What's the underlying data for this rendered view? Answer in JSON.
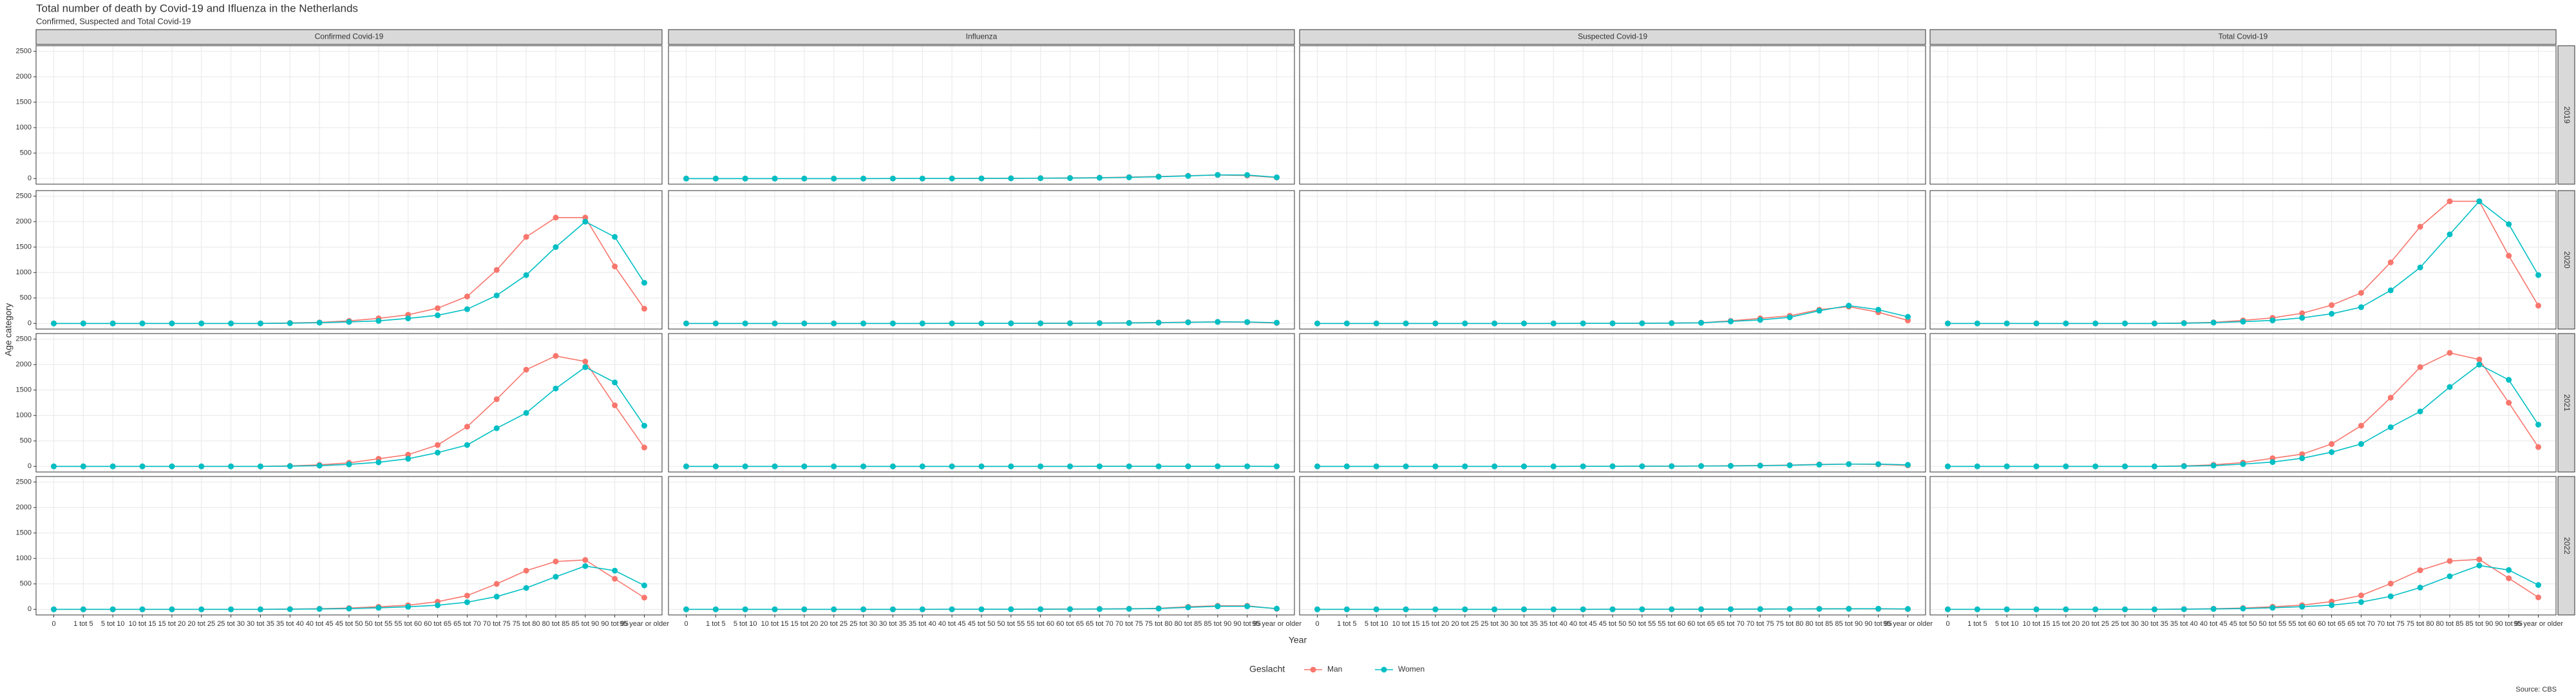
{
  "chart_data": {
    "type": "line",
    "title": "Total number of death by Covid-19 and Ifluenza in the Netherlands",
    "subtitle": "Confirmed, Suspected and Total Covid-19",
    "x_label": "Year",
    "y_label": "Age category",
    "legend_title": "Geslacht",
    "caption": "Source: CBS",
    "columns": [
      "Confirmed Covid-19",
      "Influenza",
      "Suspected Covid-19",
      "Total Covid-19"
    ],
    "rows": [
      "2019",
      "2020",
      "2021",
      "2022"
    ],
    "categories": [
      "0",
      "1 tot 5",
      "5 tot 10",
      "10 tot 15",
      "15 tot 20",
      "20 tot 25",
      "25 tot 30",
      "30 tot 35",
      "35 tot 40",
      "40 tot 45",
      "45 tot 50",
      "50 tot 55",
      "55 tot 60",
      "60 tot 65",
      "65 tot 70",
      "70 tot 75",
      "75 tot 80",
      "80 tot 85",
      "85 tot 90",
      "90 tot 95",
      "95 year or older"
    ],
    "ylim": [
      -110,
      2610
    ],
    "yticks": [
      0,
      500,
      1000,
      1500,
      2000,
      2500
    ],
    "grid": true,
    "legend_position": "bottom",
    "series": [
      {
        "name": "Man",
        "color": "#F8766D",
        "values": [
          [
            null,
            [
              0,
              0,
              0,
              0,
              0,
              0,
              0,
              1,
              1,
              2,
              3,
              5,
              8,
              12,
              18,
              28,
              40,
              55,
              70,
              60,
              20
            ],
            null,
            null
          ],
          [
            [
              0,
              0,
              0,
              0,
              0,
              0,
              0,
              0,
              10,
              20,
              50,
              100,
              170,
              300,
              530,
              1050,
              1700,
              2080,
              2080,
              1120,
              290
            ],
            [
              0,
              0,
              0,
              0,
              0,
              0,
              0,
              0,
              0,
              1,
              1,
              2,
              3,
              5,
              8,
              12,
              18,
              25,
              30,
              25,
              10
            ],
            [
              0,
              0,
              0,
              0,
              0,
              0,
              0,
              0,
              0,
              1,
              2,
              4,
              8,
              15,
              50,
              100,
              150,
              270,
              330,
              220,
              60
            ],
            [
              0,
              0,
              0,
              0,
              0,
              0,
              0,
              0,
              10,
              21,
              60,
              110,
              200,
              360,
              600,
              1200,
              1900,
              2400,
              2400,
              1330,
              350
            ]
          ],
          [
            [
              0,
              0,
              0,
              0,
              0,
              0,
              0,
              0,
              10,
              30,
              70,
              150,
              230,
              420,
              780,
              1320,
              1900,
              2170,
              2060,
              1200,
              370
            ],
            [
              0,
              0,
              0,
              0,
              0,
              0,
              0,
              0,
              0,
              0,
              0,
              0,
              0,
              0,
              1,
              1,
              1,
              2,
              2,
              1,
              0
            ],
            [
              0,
              0,
              0,
              0,
              0,
              0,
              0,
              0,
              0,
              1,
              2,
              3,
              5,
              8,
              12,
              18,
              25,
              40,
              45,
              40,
              20
            ],
            [
              0,
              0,
              0,
              0,
              0,
              0,
              0,
              0,
              10,
              31,
              75,
              160,
              240,
              440,
              800,
              1350,
              1950,
              2230,
              2100,
              1250,
              380
            ]
          ],
          [
            [
              0,
              0,
              0,
              0,
              0,
              0,
              0,
              0,
              5,
              12,
              25,
              50,
              80,
              150,
              270,
              500,
              760,
              940,
              970,
              600,
              230
            ],
            [
              0,
              0,
              0,
              0,
              0,
              0,
              0,
              0,
              0,
              1,
              1,
              2,
              3,
              5,
              8,
              12,
              20,
              50,
              70,
              70,
              10
            ],
            [
              0,
              0,
              0,
              0,
              0,
              0,
              0,
              0,
              0,
              0,
              1,
              1,
              2,
              3,
              4,
              6,
              8,
              10,
              12,
              10,
              5
            ],
            [
              0,
              0,
              0,
              0,
              0,
              0,
              0,
              0,
              5,
              12,
              26,
              51,
              82,
              153,
              274,
              506,
              768,
              950,
              980,
              610,
              235
            ]
          ]
        ]
      },
      {
        "name": "Women",
        "color": "#00BFC4",
        "values": [
          [
            null,
            [
              0,
              0,
              0,
              0,
              0,
              0,
              0,
              1,
              1,
              2,
              3,
              5,
              7,
              10,
              15,
              24,
              36,
              52,
              72,
              70,
              25
            ],
            null,
            null
          ],
          [
            [
              0,
              0,
              0,
              0,
              0,
              0,
              0,
              0,
              5,
              15,
              30,
              50,
              100,
              160,
              280,
              550,
              950,
              1500,
              2000,
              1700,
              800
            ],
            [
              0,
              0,
              0,
              0,
              0,
              0,
              0,
              0,
              0,
              1,
              1,
              2,
              3,
              4,
              6,
              10,
              15,
              22,
              30,
              28,
              15
            ],
            [
              0,
              0,
              0,
              0,
              0,
              0,
              0,
              0,
              0,
              1,
              2,
              3,
              6,
              12,
              40,
              70,
              120,
              250,
              350,
              270,
              130
            ],
            [
              0,
              0,
              0,
              0,
              0,
              0,
              0,
              0,
              5,
              16,
              35,
              60,
              110,
              190,
              320,
              650,
              1100,
              1750,
              2400,
              1950,
              950
            ]
          ],
          [
            [
              0,
              0,
              0,
              0,
              0,
              0,
              0,
              0,
              5,
              15,
              40,
              80,
              150,
              270,
              420,
              750,
              1050,
              1530,
              1950,
              1650,
              800
            ],
            [
              0,
              0,
              0,
              0,
              0,
              0,
              0,
              0,
              0,
              0,
              0,
              0,
              0,
              0,
              1,
              1,
              1,
              2,
              2,
              1,
              0
            ],
            [
              0,
              0,
              0,
              0,
              0,
              0,
              0,
              0,
              0,
              1,
              2,
              3,
              4,
              7,
              10,
              15,
              22,
              35,
              45,
              45,
              30
            ],
            [
              0,
              0,
              0,
              0,
              0,
              0,
              0,
              0,
              5,
              16,
              45,
              85,
              160,
              280,
              440,
              770,
              1080,
              1560,
              2000,
              1700,
              820
            ]
          ],
          [
            [
              0,
              0,
              0,
              0,
              0,
              0,
              0,
              0,
              3,
              8,
              15,
              30,
              50,
              80,
              140,
              250,
              420,
              640,
              850,
              760,
              470
            ],
            [
              0,
              0,
              0,
              0,
              0,
              0,
              0,
              0,
              0,
              1,
              1,
              2,
              3,
              4,
              6,
              10,
              16,
              40,
              60,
              60,
              15
            ],
            [
              0,
              0,
              0,
              0,
              0,
              0,
              0,
              0,
              0,
              0,
              1,
              1,
              2,
              2,
              3,
              5,
              7,
              9,
              11,
              12,
              8
            ],
            [
              0,
              0,
              0,
              0,
              0,
              0,
              0,
              0,
              3,
              8,
              16,
              31,
              52,
              82,
              143,
              255,
              427,
              649,
              861,
              772,
              478
            ]
          ]
        ]
      }
    ]
  }
}
